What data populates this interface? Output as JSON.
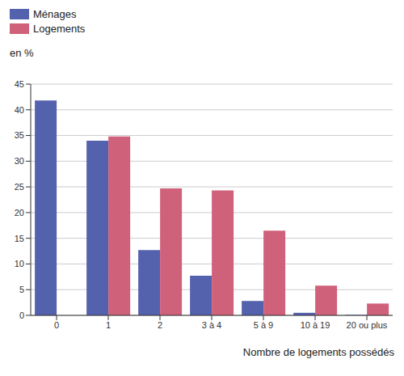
{
  "chart_data": {
    "type": "bar",
    "x_label": "Nombre de logements possédés",
    "y_label": "en %",
    "categories": [
      "0",
      "1",
      "2",
      "3 à 4",
      "5 à 9",
      "10 à 19",
      "20 ou plus"
    ],
    "series": [
      {
        "name": "Ménages",
        "color": "#5462ae",
        "values": [
          41.8,
          34.0,
          12.7,
          7.7,
          2.8,
          0.5,
          0.1
        ]
      },
      {
        "name": "Logements",
        "color": "#d0617a",
        "values": [
          0,
          34.8,
          24.7,
          24.3,
          16.5,
          5.8,
          2.3
        ]
      }
    ],
    "ylim": [
      0,
      45
    ],
    "yticks": [
      0,
      5,
      10,
      15,
      20,
      25,
      30,
      35,
      40,
      45
    ],
    "grid": true,
    "legend": "top-left"
  }
}
